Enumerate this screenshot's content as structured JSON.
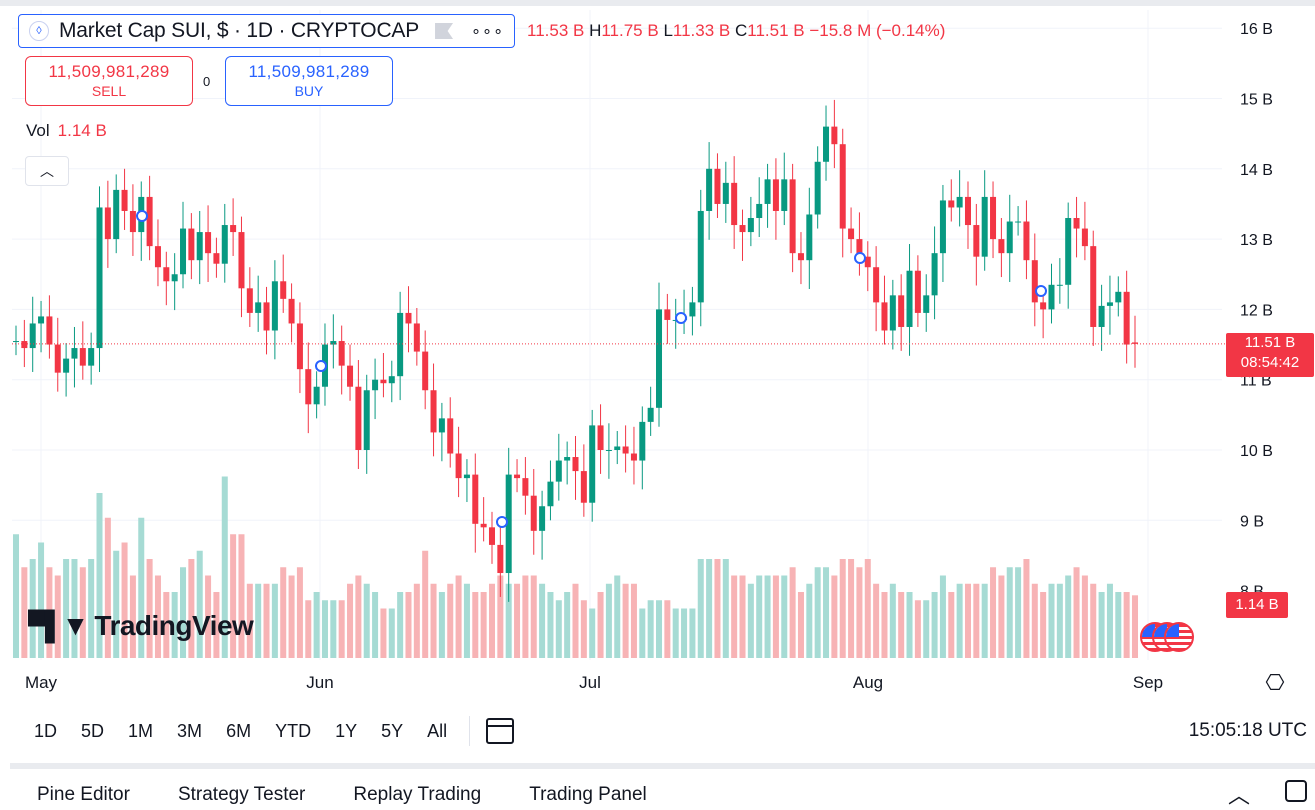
{
  "legend": {
    "title": "Market Cap SUI, $ · 1D · CRYPTOCAP",
    "more": "∘∘∘",
    "open_value": "11.53 B",
    "high_key": "H",
    "high_value": "11.75 B",
    "low_key": "L",
    "low_value": "11.33 B",
    "close_key": "C",
    "close_value": "11.51 B",
    "change": "−15.8 M (−0.14%)"
  },
  "trade": {
    "sell_price": "11,509,981,289",
    "sell_label": "SELL",
    "spread": "0",
    "buy_price": "11,509,981,289",
    "buy_label": "BUY"
  },
  "volume_legend": {
    "label": "Vol",
    "value": "1.14 B"
  },
  "price_tag": {
    "value": "11.51 B",
    "countdown": "08:54:42"
  },
  "volume_tag": "1.14 B",
  "watermark": "TradingView",
  "toolbar": {
    "timeframes": [
      "1D",
      "5D",
      "1M",
      "3M",
      "6M",
      "YTD",
      "1Y",
      "5Y",
      "All"
    ],
    "clock": "15:05:18 UTC"
  },
  "bottom_tabs": [
    "Pine Editor",
    "Strategy Tester",
    "Replay Trading",
    "Trading Panel"
  ],
  "colors": {
    "up": "#089981",
    "down": "#f23645",
    "up_vol": "#a6dbd4",
    "down_vol": "#f7b3b5",
    "accent": "#2962ff"
  },
  "chart_data": {
    "type": "candlestick",
    "x_ticks": [
      "May",
      "Jun",
      "Jul",
      "Aug",
      "Sep"
    ],
    "y_ticks": [
      "9 B",
      "10 B",
      "11 B",
      "12 B",
      "13 B",
      "14 B",
      "15 B",
      "16 B"
    ],
    "y_unit": "B",
    "last_price": 11.51,
    "ohlc_close": [
      11.55,
      11.45,
      11.8,
      11.9,
      11.5,
      11.1,
      11.3,
      11.45,
      11.2,
      11.45,
      13.45,
      13.0,
      13.7,
      13.4,
      13.1,
      13.6,
      12.9,
      12.6,
      12.4,
      12.5,
      13.15,
      12.7,
      13.1,
      12.8,
      12.65,
      13.2,
      13.1,
      12.3,
      11.95,
      12.1,
      11.7,
      12.4,
      12.15,
      11.8,
      11.15,
      10.65,
      10.9,
      11.5,
      11.55,
      11.2,
      10.9,
      10.0,
      10.85,
      11.0,
      10.95,
      11.05,
      11.95,
      11.8,
      11.4,
      10.85,
      10.25,
      10.45,
      9.95,
      9.6,
      9.65,
      8.95,
      8.9,
      8.65,
      8.25,
      9.65,
      9.6,
      9.35,
      8.85,
      9.2,
      9.55,
      9.85,
      9.9,
      9.7,
      9.25,
      10.35,
      10.0,
      10.0,
      10.05,
      9.95,
      9.85,
      10.4,
      10.6,
      12.0,
      11.85,
      11.85,
      11.9,
      12.1,
      13.4,
      14.0,
      13.5,
      13.8,
      13.2,
      13.1,
      13.3,
      13.5,
      13.85,
      13.4,
      13.85,
      12.8,
      12.7,
      13.35,
      14.1,
      14.6,
      14.35,
      13.15,
      13.0,
      12.75,
      12.6,
      12.1,
      11.7,
      12.2,
      11.75,
      12.55,
      11.95,
      12.2,
      12.8,
      13.55,
      13.45,
      13.6,
      13.2,
      12.75,
      13.6,
      13.0,
      12.8,
      13.25,
      13.25,
      12.7,
      12.1,
      12.0,
      12.35,
      12.35,
      13.3,
      13.15,
      12.9,
      11.75,
      12.05,
      12.1,
      12.25,
      11.5,
      11.51
    ],
    "ohlc_open": [
      11.55,
      11.55,
      11.45,
      11.8,
      11.9,
      11.5,
      11.1,
      11.3,
      11.45,
      11.2,
      11.45,
      13.45,
      13.0,
      13.7,
      13.4,
      13.1,
      13.6,
      12.9,
      12.6,
      12.4,
      12.5,
      13.15,
      12.7,
      13.1,
      12.8,
      12.65,
      13.2,
      13.1,
      12.3,
      11.95,
      12.1,
      11.7,
      12.4,
      12.15,
      11.8,
      11.15,
      10.65,
      10.9,
      11.5,
      11.55,
      11.2,
      10.9,
      10.0,
      10.85,
      11.0,
      10.95,
      11.05,
      11.95,
      11.8,
      11.4,
      10.85,
      10.25,
      10.45,
      9.95,
      9.6,
      9.65,
      8.95,
      8.9,
      8.65,
      8.25,
      9.65,
      9.6,
      9.35,
      8.85,
      9.2,
      9.55,
      9.85,
      9.9,
      9.7,
      9.25,
      10.35,
      10.0,
      10.0,
      10.05,
      9.95,
      9.85,
      10.4,
      10.6,
      12.0,
      11.85,
      11.85,
      11.9,
      12.1,
      13.4,
      14.0,
      13.5,
      13.8,
      13.2,
      13.1,
      13.3,
      13.5,
      13.85,
      13.4,
      13.85,
      12.8,
      12.7,
      13.35,
      14.1,
      14.6,
      14.35,
      13.15,
      13.0,
      12.75,
      12.6,
      12.1,
      11.7,
      12.2,
      11.75,
      12.55,
      11.95,
      12.2,
      12.8,
      13.55,
      13.45,
      13.6,
      13.2,
      12.75,
      13.6,
      13.0,
      12.8,
      13.25,
      13.25,
      12.7,
      12.1,
      12.0,
      12.35,
      12.35,
      13.3,
      13.15,
      12.9,
      11.75,
      12.05,
      12.1,
      12.25,
      11.53
    ],
    "volume_rel": [
      0.75,
      0.55,
      0.6,
      0.7,
      0.55,
      0.5,
      0.6,
      0.6,
      0.55,
      0.6,
      1.0,
      0.85,
      0.65,
      0.7,
      0.5,
      0.85,
      0.6,
      0.5,
      0.4,
      0.4,
      0.55,
      0.6,
      0.65,
      0.5,
      0.4,
      1.1,
      0.75,
      0.75,
      0.45,
      0.45,
      0.45,
      0.45,
      0.55,
      0.5,
      0.55,
      0.35,
      0.4,
      0.35,
      0.35,
      0.35,
      0.45,
      0.5,
      0.45,
      0.4,
      0.3,
      0.3,
      0.4,
      0.4,
      0.45,
      0.65,
      0.45,
      0.4,
      0.45,
      0.5,
      0.45,
      0.4,
      0.4,
      0.45,
      0.5,
      0.45,
      0.45,
      0.5,
      0.5,
      0.45,
      0.4,
      0.35,
      0.4,
      0.45,
      0.35,
      0.3,
      0.4,
      0.45,
      0.5,
      0.45,
      0.45,
      0.3,
      0.35,
      0.35,
      0.35,
      0.3,
      0.3,
      0.3,
      0.6,
      0.6,
      0.6,
      0.6,
      0.5,
      0.5,
      0.45,
      0.5,
      0.5,
      0.5,
      0.5,
      0.55,
      0.4,
      0.45,
      0.55,
      0.55,
      0.5,
      0.6,
      0.6,
      0.55,
      0.6,
      0.45,
      0.4,
      0.45,
      0.4,
      0.4,
      0.35,
      0.35,
      0.4,
      0.5,
      0.4,
      0.45,
      0.45,
      0.45,
      0.45,
      0.55,
      0.5,
      0.55,
      0.55,
      0.6,
      0.45,
      0.4,
      0.45,
      0.45,
      0.5,
      0.55,
      0.5,
      0.45,
      0.4,
      0.45,
      0.4,
      0.4,
      0.38,
      0.38
    ]
  }
}
